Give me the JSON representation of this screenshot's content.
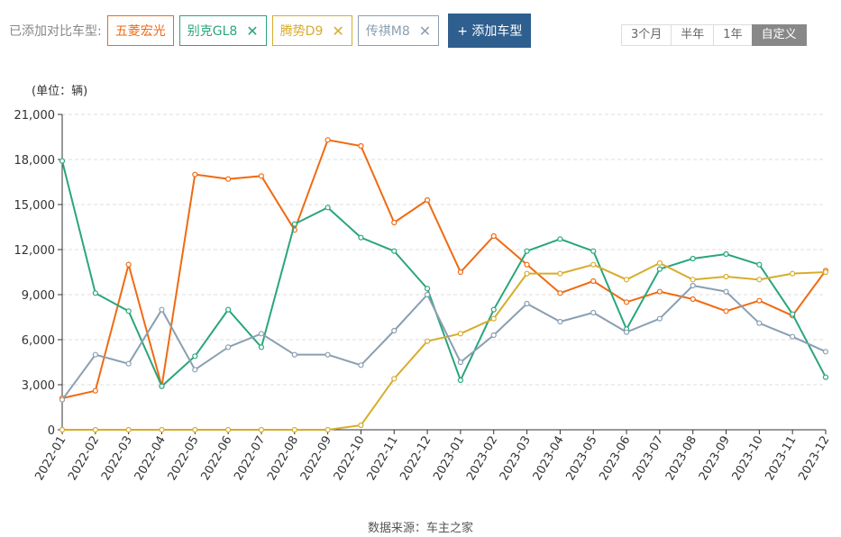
{
  "header": {
    "label": "已添加对比车型:",
    "tags": [
      {
        "name": "五菱宏光",
        "color": "#f06a12",
        "closable": false
      },
      {
        "name": "别克GL8",
        "color": "#2aa57c",
        "closable": true
      },
      {
        "name": "腾势D9",
        "color": "#d8ac2a",
        "closable": true
      },
      {
        "name": "传祺M8",
        "color": "#8a9fb2",
        "closable": true
      }
    ],
    "add_label": "+ 添加车型"
  },
  "range": {
    "options": [
      "3个月",
      "半年",
      "1年",
      "自定义"
    ],
    "selected": "自定义"
  },
  "source": "数据来源：车主之家",
  "chart_data": {
    "type": "line",
    "unit": "(单位：辆)",
    "ylim": [
      0,
      21000
    ],
    "yticks": [
      "0",
      "3,000",
      "6,000",
      "9,000",
      "12,000",
      "15,000",
      "18,000",
      "21,000"
    ],
    "grid": true,
    "categories": [
      "2022-01",
      "2022-02",
      "2022-03",
      "2022-04",
      "2022-05",
      "2022-06",
      "2022-07",
      "2022-08",
      "2022-09",
      "2022-10",
      "2022-11",
      "2022-12",
      "2023-01",
      "2023-02",
      "2023-03",
      "2023-04",
      "2023-05",
      "2023-06",
      "2023-07",
      "2023-08",
      "2023-09",
      "2023-10",
      "2023-11",
      "2023-12"
    ],
    "series": [
      {
        "name": "五菱宏光",
        "color": "#f06a12",
        "values": [
          2100,
          2600,
          11000,
          2900,
          17000,
          16700,
          16900,
          13300,
          19300,
          18900,
          13800,
          15300,
          10500,
          12900,
          11000,
          9100,
          9900,
          8500,
          9200,
          8700,
          7900,
          8600,
          7600,
          10600
        ]
      },
      {
        "name": "别克GL8",
        "color": "#2aa57c",
        "values": [
          17900,
          9100,
          7900,
          2900,
          4900,
          8000,
          5500,
          13700,
          14800,
          12800,
          11900,
          9400,
          3300,
          8000,
          11900,
          12700,
          11900,
          6700,
          10700,
          11400,
          11700,
          11000,
          7700,
          3500
        ]
      },
      {
        "name": "腾势D9",
        "color": "#d8ac2a",
        "values": [
          0,
          0,
          0,
          0,
          0,
          0,
          0,
          0,
          0,
          300,
          3400,
          5900,
          6400,
          7400,
          10400,
          10400,
          11000,
          10000,
          11100,
          10000,
          10200,
          10000,
          10400,
          10500
        ]
      },
      {
        "name": "传祺M8",
        "color": "#8a9fb2",
        "values": [
          2000,
          5000,
          4400,
          8000,
          4000,
          5500,
          6400,
          5000,
          5000,
          4300,
          6600,
          9000,
          4500,
          6300,
          8400,
          7200,
          7800,
          6500,
          7400,
          9600,
          9200,
          7100,
          6200,
          5200
        ]
      }
    ]
  }
}
